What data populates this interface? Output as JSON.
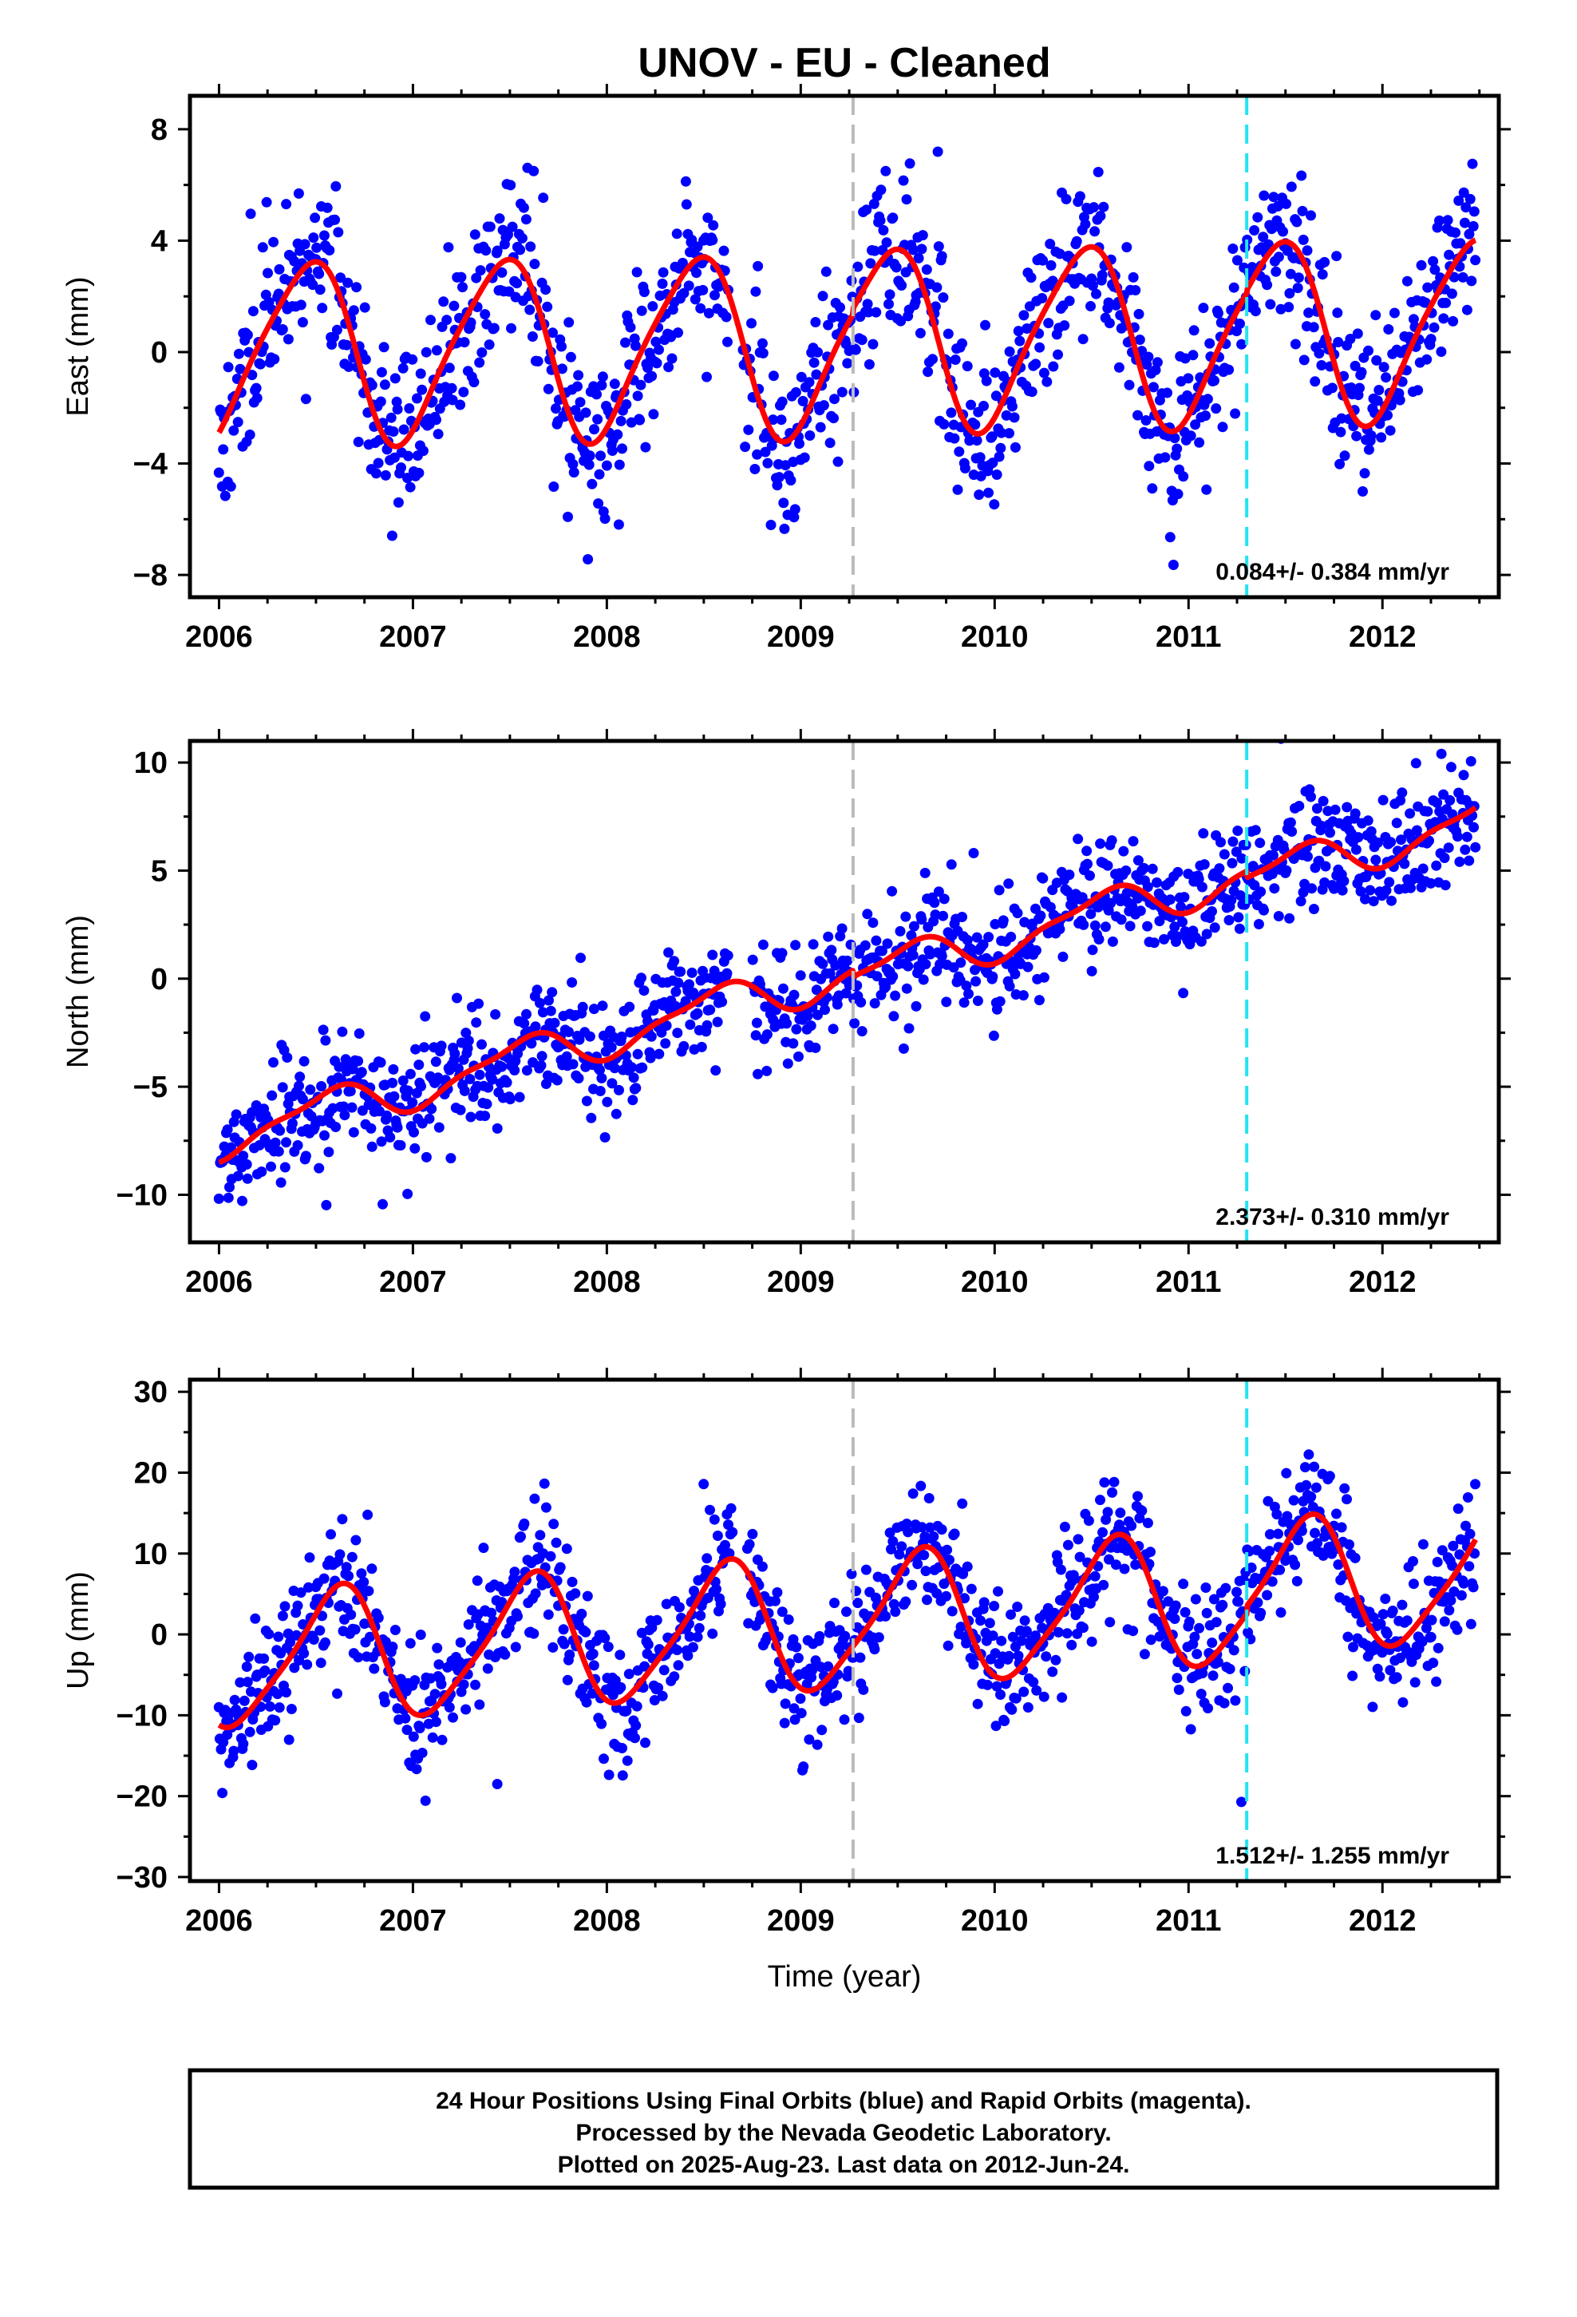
{
  "title": "UNOV  - EU - Cleaned",
  "xlabel": "Time (year)",
  "colors": {
    "final_points": "#0000ff",
    "model_curve": "#ff0000",
    "gray_marker": "#bbbbbb",
    "cyan_marker": "#22e5f0",
    "frame": "#000000"
  },
  "footer": {
    "line1": "24 Hour Positions Using Final Orbits (blue) and Rapid Orbits (magenta).",
    "line2": "Processed by the Nevada Geodetic Laboratory.",
    "line3": "Plotted on 2025-Aug-23. Last data on 2012-Jun-24."
  },
  "chart_data": [
    {
      "type": "scatter",
      "ylabel": "East (mm)",
      "xlim": [
        2005.85,
        2012.6
      ],
      "ylim": [
        -8.8,
        9.2
      ],
      "xticks": [
        2006,
        2007,
        2008,
        2009,
        2010,
        2011,
        2012
      ],
      "yticks": [
        -8,
        -4,
        0,
        4,
        8
      ],
      "ytick_labels": [
        "−8",
        "−4",
        "0",
        "4",
        "8"
      ],
      "rate_text": "0.084+/- 0.384 mm/yr",
      "markers": [
        {
          "kind": "gray",
          "x": 2009.27
        },
        {
          "kind": "cyan",
          "x": 2011.3
        }
      ],
      "model": {
        "rate": 0.084,
        "offset": 0.0,
        "annual": 3.2,
        "peak": 0.45,
        "semiannual": 0.5,
        "semi_phase": 0.1,
        "segments": [
          {
            "start": 2006.0,
            "end": 2009.27,
            "offset": 0.0
          },
          {
            "start": 2009.27,
            "end": 2011.3,
            "offset": 0.2
          },
          {
            "start": 2011.3,
            "end": 2012.48,
            "offset": 0.3
          }
        ]
      },
      "points": {
        "start": 2006.0,
        "end": 2012.48,
        "noise": 1.5,
        "seed": 11,
        "gaps": [
          [
            2008.63,
            2008.7
          ]
        ]
      }
    },
    {
      "type": "scatter",
      "ylabel": "North (mm)",
      "xlim": [
        2005.85,
        2012.6
      ],
      "ylim": [
        -12.2,
        11.0
      ],
      "xticks": [
        2006,
        2007,
        2008,
        2009,
        2010,
        2011,
        2012
      ],
      "yticks": [
        -10,
        -5,
        0,
        5,
        10
      ],
      "ytick_labels": [
        "−10",
        "−5",
        "0",
        "5",
        "10"
      ],
      "rate_text": "2.373+/- 0.310 mm/yr",
      "markers": [
        {
          "kind": "gray",
          "x": 2009.27
        },
        {
          "kind": "cyan",
          "x": 2011.3
        }
      ],
      "model": {
        "rate": 2.373,
        "offset": -7.4,
        "annual": 0.9,
        "peak": 0.55,
        "semiannual": 0.3,
        "semi_phase": 0.2,
        "segments": [
          {
            "start": 2006.0,
            "end": 2009.27,
            "offset": 0.0
          },
          {
            "start": 2009.27,
            "end": 2011.3,
            "offset": -0.3
          },
          {
            "start": 2011.3,
            "end": 2012.48,
            "offset": -0.6
          }
        ]
      },
      "points": {
        "start": 2006.0,
        "end": 2012.48,
        "noise": 1.3,
        "seed": 23,
        "gaps": [
          [
            2008.63,
            2008.75
          ]
        ]
      }
    },
    {
      "type": "scatter",
      "ylabel": "Up (mm)",
      "xlim": [
        2005.85,
        2012.6
      ],
      "ylim": [
        -30.5,
        31.5
      ],
      "xticks": [
        2006,
        2007,
        2008,
        2009,
        2010,
        2011,
        2012
      ],
      "yticks": [
        -30,
        -20,
        -10,
        0,
        10,
        20,
        30
      ],
      "ytick_labels": [
        "−30",
        "−20",
        "−10",
        "0",
        "10",
        "20",
        "30"
      ],
      "rate_text": "1.512+/- 1.255 mm/yr",
      "markers": [
        {
          "kind": "gray",
          "x": 2009.27
        },
        {
          "kind": "cyan",
          "x": 2011.3
        }
      ],
      "model": {
        "rate": 1.512,
        "offset": -3.5,
        "annual": 8.0,
        "peak": 0.6,
        "semiannual": 1.5,
        "semi_phase": 0.2,
        "segments": [
          {
            "start": 2006.0,
            "end": 2009.27,
            "offset": 0.0
          },
          {
            "start": 2009.27,
            "end": 2011.3,
            "offset": 0.0
          },
          {
            "start": 2011.3,
            "end": 2012.48,
            "offset": 1.0
          }
        ]
      },
      "points": {
        "start": 2006.0,
        "end": 2012.48,
        "noise": 4.0,
        "seed": 37,
        "gaps": [
          [
            2008.65,
            2008.72
          ]
        ]
      }
    }
  ]
}
